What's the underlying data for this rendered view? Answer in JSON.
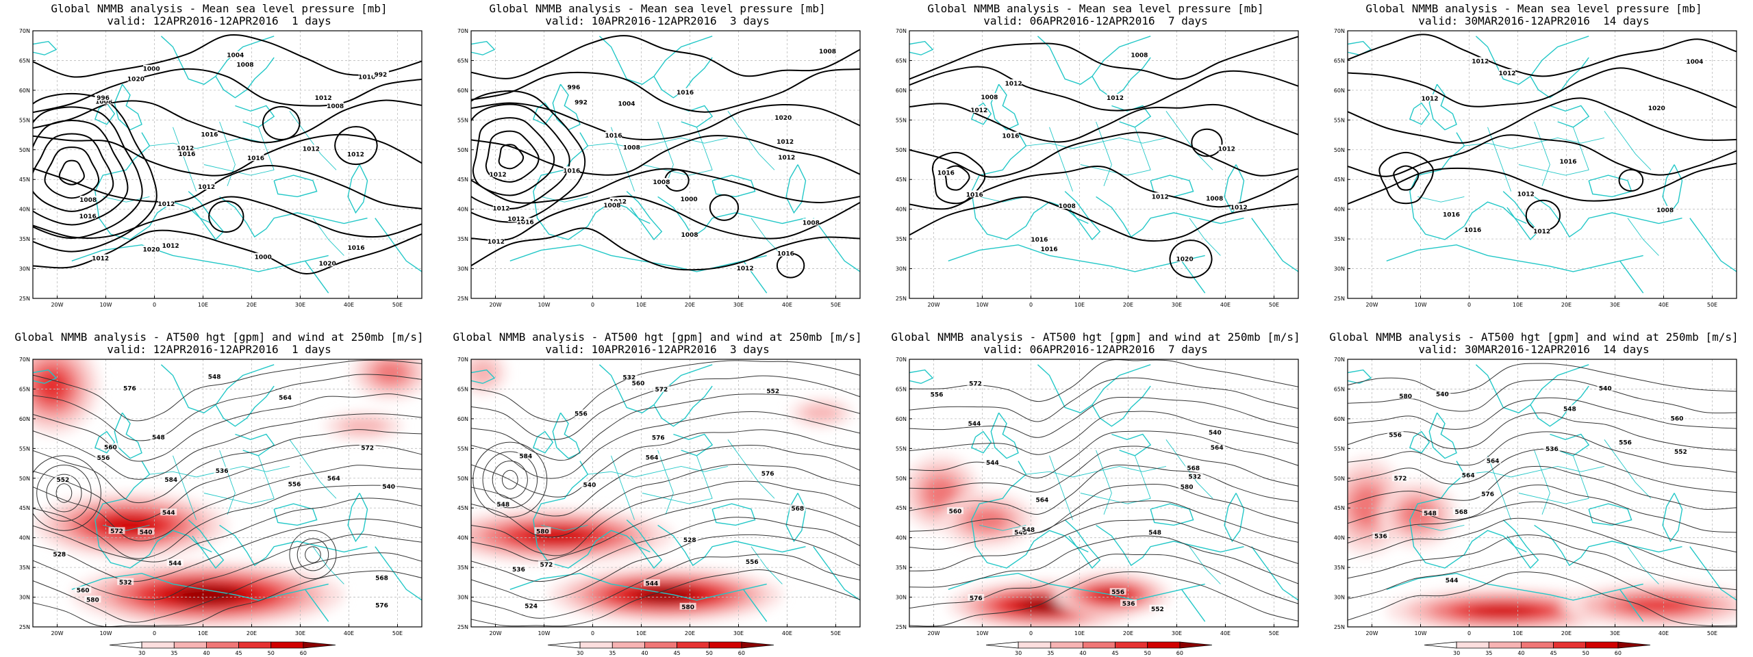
{
  "map": {
    "lat_labels": [
      "70N",
      "65N",
      "60N",
      "55N",
      "50N",
      "45N",
      "40N",
      "35N",
      "30N",
      "25N"
    ],
    "lon_labels": [
      "20W",
      "10W",
      "0",
      "10E",
      "20E",
      "30E",
      "40E",
      "50E"
    ]
  },
  "colorbar": {
    "ticks": [
      "30",
      "35",
      "40",
      "45",
      "50",
      "60"
    ],
    "colors": [
      "#ffffff",
      "#fcdede",
      "#f7b3b3",
      "#f07777",
      "#e63232",
      "#d00000",
      "#8b0000"
    ]
  },
  "panels": [
    {
      "row": "mslp",
      "col": 0,
      "title_line1": "Global NMMB analysis - Mean sea level pressure [mb]",
      "title_line2": "valid: 12APR2016-12APR2016  1 days",
      "contour_labels": [
        "1020",
        "1012",
        "1016",
        "1020",
        "1016",
        "1008",
        "1016",
        "1020",
        "1012",
        "1016",
        "1012",
        "1000",
        "996",
        "992",
        "1012",
        "1008",
        "1012",
        "1008",
        "1004",
        "1000",
        "1008",
        "1012",
        "1012",
        "1016",
        "1012",
        "1016"
      ]
    },
    {
      "row": "mslp",
      "col": 1,
      "title_line1": "Global NMMB analysis - Mean sea level pressure [mb]",
      "title_line2": "valid: 10APR2016-12APR2016  3 days",
      "contour_labels": [
        "1008",
        "1012",
        "1012",
        "1020",
        "1016",
        "1016",
        "1008",
        "1000",
        "1012",
        "996",
        "1012",
        "992",
        "1008",
        "1012",
        "1016",
        "1008",
        "1012",
        "1008",
        "1004",
        "1008",
        "1012",
        "1012",
        "1016",
        "1016"
      ]
    },
    {
      "row": "mslp",
      "col": 2,
      "title_line1": "Global NMMB analysis - Mean sea level pressure [mb]",
      "title_line2": "valid: 06APR2016-12APR2016  7 days",
      "contour_labels": [
        "1020",
        "1016",
        "1016",
        "1012",
        "1008",
        "1016",
        "1008",
        "1012",
        "1008",
        "1012",
        "1012",
        "1016",
        "1012",
        "1016",
        "1008",
        "1012"
      ]
    },
    {
      "row": "mslp",
      "col": 3,
      "title_line1": "Global NMMB analysis - Mean sea level pressure [mb]",
      "title_line2": "valid: 30MAR2016-12APR2016  14 days",
      "contour_labels": [
        "1012",
        "1016",
        "1012",
        "1004",
        "1008",
        "1012",
        "1016",
        "1012",
        "1016",
        "1020",
        "1012"
      ]
    },
    {
      "row": "at500",
      "col": 0,
      "title_line1": "Global NMMB analysis - AT500 hgt [gpm] and wind at 250mb [m/s]",
      "title_line2": "valid: 12APR2016-12APR2016  1 days",
      "contour_labels": [
        "540",
        "544",
        "548",
        "552",
        "556",
        "536",
        "532",
        "548",
        "528",
        "560",
        "564",
        "572",
        "576",
        "580",
        "584",
        "556",
        "560",
        "564",
        "568",
        "572",
        "576",
        "544",
        "540"
      ]
    },
    {
      "row": "at500",
      "col": 1,
      "title_line1": "Global NMMB analysis - AT500 hgt [gpm] and wind at 250mb [m/s]",
      "title_line2": "valid: 10APR2016-12APR2016  3 days",
      "contour_labels": [
        "548",
        "544",
        "540",
        "536",
        "532",
        "528",
        "524",
        "556",
        "560",
        "564",
        "568",
        "572",
        "576",
        "580",
        "584",
        "572",
        "576",
        "580",
        "552",
        "556"
      ]
    },
    {
      "row": "at500",
      "col": 2,
      "title_line1": "Global NMMB analysis - AT500 hgt [gpm] and wind at 250mb [m/s]",
      "title_line2": "valid: 06APR2016-12APR2016  7 days",
      "contour_labels": [
        "532",
        "536",
        "540",
        "544",
        "548",
        "552",
        "556",
        "560",
        "564",
        "568",
        "572",
        "576",
        "580",
        "544",
        "540",
        "548",
        "556",
        "564"
      ]
    },
    {
      "row": "at500",
      "col": 3,
      "title_line1": "Global NMMB analysis - AT500 hgt [gpm] and wind at 250mb [m/s]",
      "title_line2": "valid: 30MAR2016-12APR2016  14 days",
      "contour_labels": [
        "536",
        "540",
        "544",
        "548",
        "552",
        "556",
        "560",
        "564",
        "568",
        "572",
        "576",
        "580",
        "536",
        "540",
        "548",
        "556",
        "564"
      ]
    }
  ]
}
